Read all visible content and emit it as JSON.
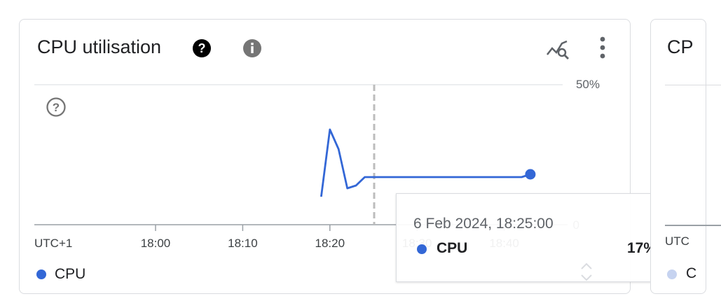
{
  "card": {
    "title": "CPU utilisation",
    "icons": {
      "help": "help-filled-icon",
      "info": "info-icon",
      "explore": "chart-explore-icon",
      "more": "more-vert-icon",
      "plot_help": "help-outline-icon"
    }
  },
  "chart_data": {
    "type": "line",
    "x_ticks": [
      "UTC+1",
      "18:00",
      "18:10",
      "18:20",
      "18:30",
      "18:40"
    ],
    "y_ticks": [
      "0",
      "50%"
    ],
    "ylim": [
      0,
      50
    ],
    "grid": true,
    "series": [
      {
        "name": "CPU",
        "color": "#3367d6",
        "points": [
          [
            "18:19",
            10
          ],
          [
            "18:20",
            34
          ],
          [
            "18:21",
            27
          ],
          [
            "18:22",
            13
          ],
          [
            "18:23",
            14
          ],
          [
            "18:24",
            17
          ],
          [
            "18:25",
            17
          ],
          [
            "18:30",
            17
          ],
          [
            "18:35",
            17
          ],
          [
            "18:40",
            17
          ],
          [
            "18:42",
            17
          ],
          [
            "18:43",
            18
          ]
        ]
      }
    ],
    "cursor_time": "18:25"
  },
  "tooltip": {
    "date": "6 Feb 2024, 18:25:00",
    "series_name": "CPU",
    "value": "17%"
  },
  "legend": {
    "items": [
      {
        "label": "CPU",
        "color": "#3367d6"
      }
    ]
  },
  "card2": {
    "title": "CP",
    "axis_label": "UTC",
    "legend_label": "C"
  }
}
